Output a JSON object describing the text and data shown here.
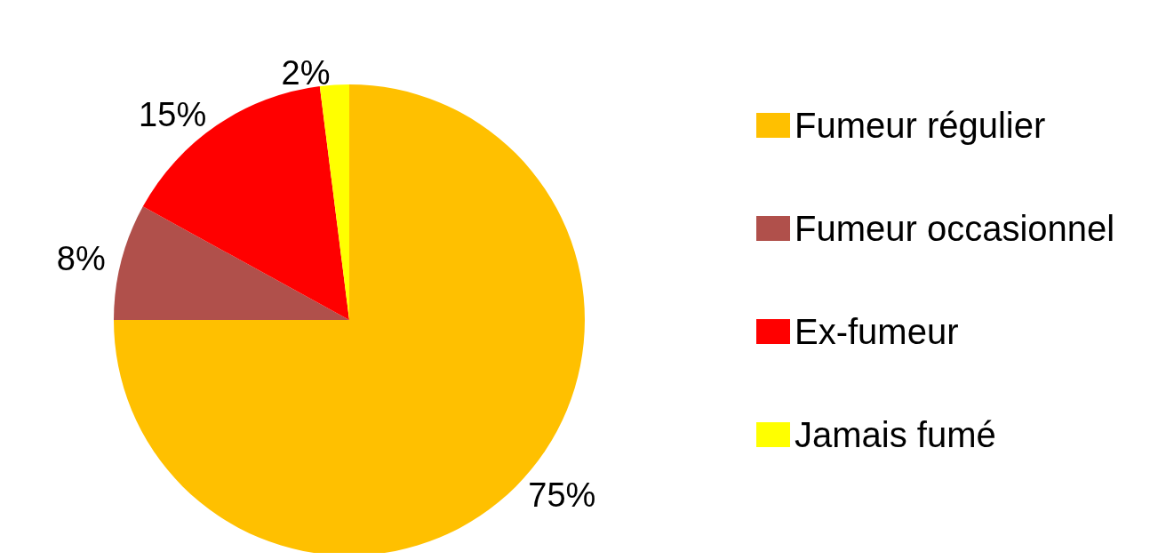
{
  "chart_data": {
    "type": "pie",
    "categories": [
      "Fumeur régulier",
      "Fumeur occasionnel",
      "Ex-fumeur",
      "Jamais fumé"
    ],
    "values": [
      75,
      8,
      15,
      2
    ],
    "colors": [
      "#ffc000",
      "#b0504b",
      "#ff0000",
      "#ffff00"
    ],
    "value_labels": [
      "75%",
      "8%",
      "15%",
      "2%"
    ],
    "legend": "right"
  }
}
